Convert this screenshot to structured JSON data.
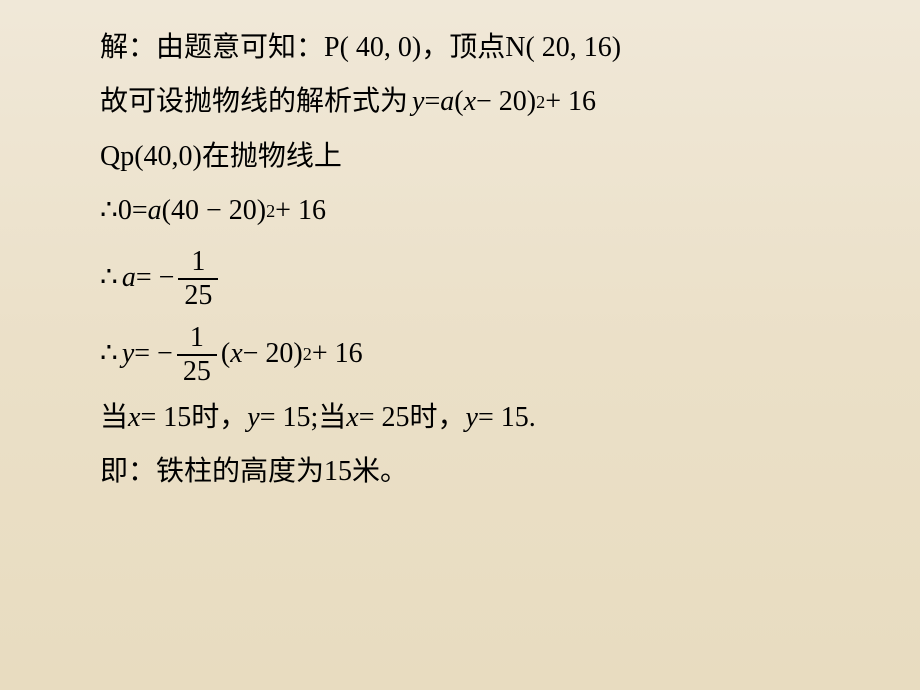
{
  "background": {
    "gradient_top": "#f0e8d8",
    "gradient_mid": "#ebe0c8",
    "gradient_bottom": "#e8dcc0"
  },
  "text_color": "#000000",
  "font_size_pt": 21,
  "lines": {
    "l1_a": "解：由题意可知：",
    "l1_p": "P( 40, 0)",
    "l1_b": " ，顶点",
    "l1_n": "N( 20, 16)",
    "l2_a": "故可设抛物线的解析式为",
    "l2_eq_y": "y",
    "l2_eq_eq": " = ",
    "l2_eq_a": "a",
    "l2_eq_open": "(",
    "l2_eq_x": "x",
    "l2_eq_m": " − 20)",
    "l2_eq_exp": "2",
    "l2_eq_tail": " + 16",
    "l3_q": "Q ",
    "l3_p": "p(40,0)",
    "l3_t": "在抛物线上",
    "l4_t": "∴",
    "l4_z": " 0=",
    "l4_a": "a",
    "l4_o": "(40 − 20)",
    "l4_e": "2",
    "l4_tail": " + 16",
    "l5_t": "∴",
    "l5_a": "a",
    "l5_eq": " = −",
    "l5_num": "1",
    "l5_den": "25",
    "l6_t": "∴",
    "l6_y": "y",
    "l6_eq": " = −",
    "l6_num": "1",
    "l6_den": "25",
    "l6_o": "(",
    "l6_x": "x",
    "l6_m": " − 20)",
    "l6_e": "2",
    "l6_tail": " + 16",
    "l7_a": "当",
    "l7_x1": "x",
    "l7_v1": " = 15",
    "l7_b": "时，",
    "l7_y1": "y",
    "l7_yv1": " = 15; ",
    "l7_c": "当",
    "l7_x2": "x",
    "l7_v2": " = 25",
    "l7_d": "时，",
    "l7_y2": "y",
    "l7_yv2": " = 15.",
    "l8_a": "即：铁柱的高度为",
    "l8_v": "15",
    "l8_b": "米。"
  }
}
